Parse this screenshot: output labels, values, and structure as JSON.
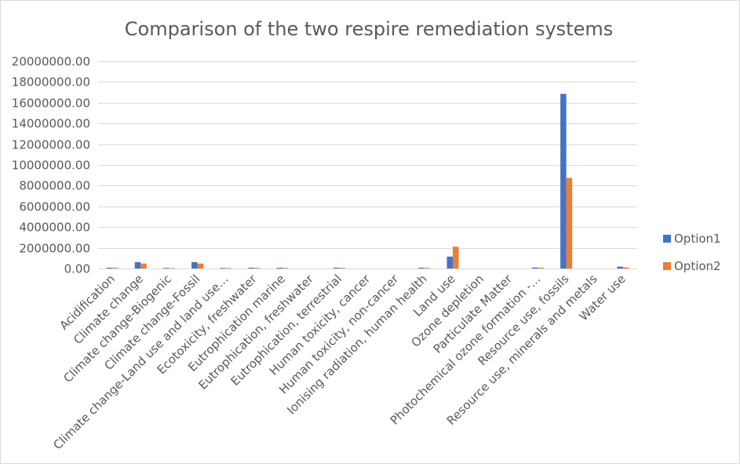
{
  "chart_data": {
    "type": "bar",
    "title": "Comparison of the two respire remediation systems",
    "xlabel": "",
    "ylabel": "",
    "ylim": [
      0,
      20000000
    ],
    "yticks": [
      "0.00",
      "2000000.00",
      "4000000.00",
      "6000000.00",
      "8000000.00",
      "10000000.00",
      "12000000.00",
      "14000000.00",
      "16000000.00",
      "18000000.00",
      "20000000.00"
    ],
    "grid": true,
    "legend_position": "right",
    "categories": [
      "Acidification",
      "Climate change",
      "Climate change-Biogenic",
      "Climate change-Fossil",
      "Climate change-Land use and land use…",
      "Ecotoxicity, freshwater",
      "Eutrophication marine",
      "Eutrophication, freshwater",
      "Eutrophication, terrestrial",
      "Human toxicity, cancer",
      "Human toxicity, non-cancer",
      "Ionising radiation, human health",
      "Land use",
      "Ozone depletion",
      "Particulate Matter",
      "Photochemical ozone formation -…",
      "Resource use, fossils",
      "Resource use, minerals and metals",
      "Water use"
    ],
    "series": [
      {
        "name": "Option1",
        "color": "#4472c4",
        "values": [
          80000,
          620000,
          60000,
          620000,
          60000,
          80000,
          80000,
          0,
          80000,
          0,
          0,
          80000,
          1150000,
          0,
          0,
          100000,
          16850000,
          0,
          180000
        ]
      },
      {
        "name": "Option2",
        "color": "#ed7d31",
        "values": [
          70000,
          480000,
          50000,
          480000,
          50000,
          60000,
          60000,
          0,
          70000,
          0,
          0,
          60000,
          2100000,
          0,
          0,
          80000,
          8750000,
          0,
          110000
        ]
      }
    ]
  }
}
